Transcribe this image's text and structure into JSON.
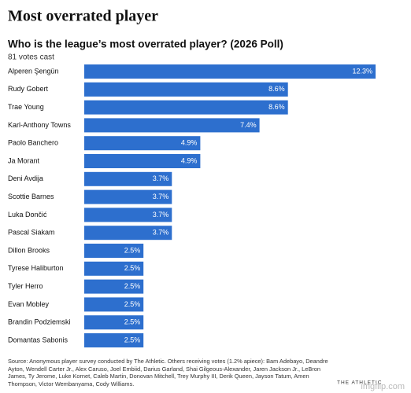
{
  "page_title": "Most overrated player",
  "chart_data": {
    "type": "hbar",
    "title": "Who is the league’s most overrated player? (2026 Poll)",
    "subtitle": "81 votes cast",
    "color": "#2d6fce",
    "categories": [
      "Alperen Şengün",
      "Rudy Gobert",
      "Trae Young",
      "Karl-Anthony Towns",
      "Paolo Banchero",
      "Ja Morant",
      "Deni Avdija",
      "Scottie Barnes",
      "Luka Dončić",
      "Pascal Siakam",
      "Dillon Brooks",
      "Tyrese Haliburton",
      "Tyler Herro",
      "Evan Mobley",
      "Brandin Podziemski",
      "Domantas Sabonis"
    ],
    "values": [
      12.3,
      8.6,
      8.6,
      7.4,
      4.9,
      4.9,
      3.7,
      3.7,
      3.7,
      3.7,
      2.5,
      2.5,
      2.5,
      2.5,
      2.5,
      2.5
    ],
    "value_labels": [
      "12.3%",
      "8.6%",
      "8.6%",
      "7.4%",
      "4.9%",
      "4.9%",
      "3.7%",
      "3.7%",
      "3.7%",
      "3.7%",
      "2.5%",
      "2.5%",
      "2.5%",
      "2.5%",
      "2.5%",
      "2.5%"
    ]
  },
  "source": "Source: Anonymous player survey conducted by The Athletic. Others receiving votes (1.2% apiece): Bam Adebayo, Deandre Ayton, Wendell Carter Jr., Alex Caruso, Joel Embiid, Darius Garland, Shai Gilgeous-Alexander, Jaren Jackson Jr., LeBron James, Ty Jerome, Luke Kornet, Caleb Martin, Donovan Mitchell, Trey Murphy III, Derik Queen, Jayson Tatum, Amen Thompson, Victor Wembanyama, Cody Williams.",
  "brand": "THE ATHLETIC",
  "watermark": "imgflip.com"
}
